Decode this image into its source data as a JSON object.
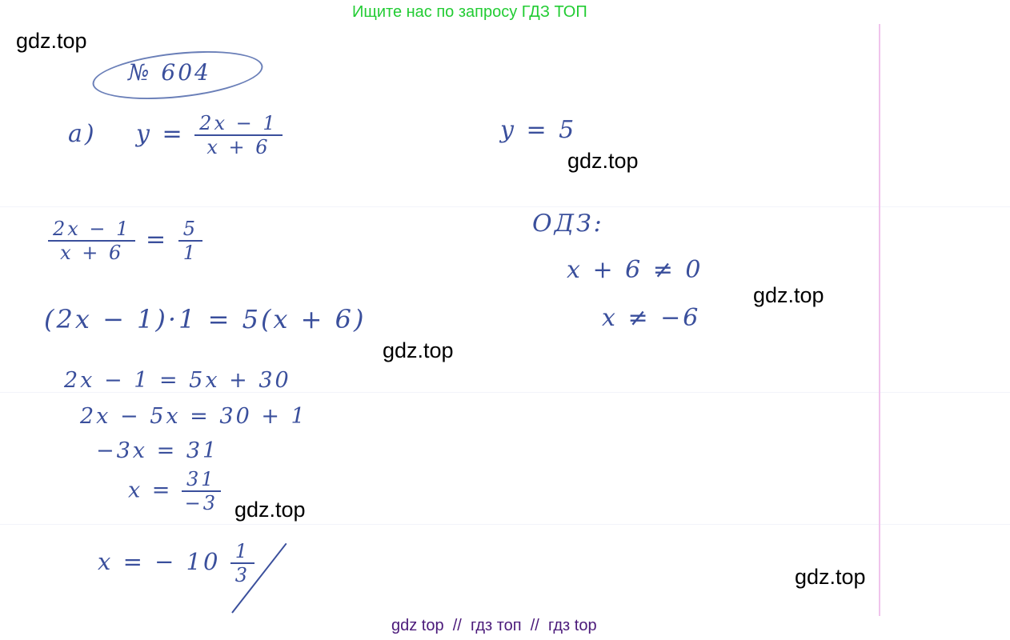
{
  "header": {
    "promo": "Ищите нас по запросу ГДЗ ТОП"
  },
  "footer": {
    "links": "gdz top  //  гдз топ  //  гдз top"
  },
  "watermarks": [
    "gdz.top",
    "gdz.top",
    "gdz.top",
    "gdz.top",
    "gdz.top",
    "gdz.top"
  ],
  "colors": {
    "promo": "#22cc33",
    "footer": "#4b1a7a",
    "ink": "#3a4f9c",
    "margin": "#f0c4ec"
  },
  "solution": {
    "number": "№ 604",
    "part": "а)",
    "func_lhs": "y =",
    "func_num": "2x − 1",
    "func_den": "x + 6",
    "y_value": "y = 5",
    "eq1_num": "2x − 1",
    "eq1_den": "x + 6",
    "eq1_eq": "=",
    "eq1_rnum": "5",
    "eq1_rden": "1",
    "eq2": "(2x − 1)·1 = 5(x + 6)",
    "eq3": "2x − 1 = 5x + 30",
    "eq4": "2x − 5x = 30 + 1",
    "eq5": "−3x = 31",
    "eq6_lhs": "x =",
    "eq6_num": "31",
    "eq6_den": "−3",
    "answer_lhs": "x = − 10",
    "answer_num": "1",
    "answer_den": "3",
    "odz_title": "ОДЗ:",
    "odz1": "x + 6 ≠ 0",
    "odz2": "x ≠ −6"
  }
}
